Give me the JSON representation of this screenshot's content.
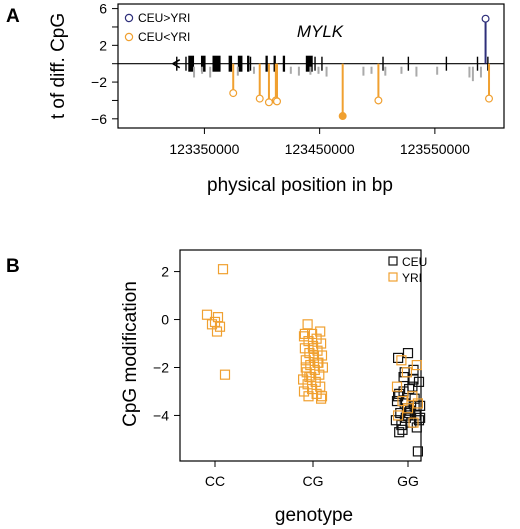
{
  "figure": {
    "panels": [
      {
        "letter": "A"
      },
      {
        "letter": "B"
      }
    ]
  },
  "chart_data": [
    {
      "type": "scatter",
      "panel": "A",
      "annotation": "MYLK",
      "xlabel": "physical position in bp",
      "ylabel": "t of diff. CpG",
      "xlim": [
        123275000,
        123610000
      ],
      "ylim": [
        -7,
        6.5
      ],
      "xticks": [
        123350000,
        123450000,
        123550000
      ],
      "xtick_labels": [
        "123350000",
        "123450000",
        "123550000"
      ],
      "yticks": [
        6,
        2,
        -2,
        -6
      ],
      "ytick_labels": [
        "6",
        "2",
        "−2",
        "−6"
      ],
      "yticks_unlabeled": [
        4,
        0,
        -4
      ],
      "legend": {
        "position": "top-left",
        "entries": [
          "CEU>YRI",
          "CEU<YRI"
        ]
      },
      "series": [
        {
          "name": "CEU>YRI",
          "color": "#2e2f7a",
          "x": [
            123594000
          ],
          "y": [
            4.9
          ]
        },
        {
          "name": "CEU<YRI",
          "color": "#f0a030",
          "x": [
            123375000,
            123398000,
            123406000,
            123412000,
            123413000,
            123470000,
            123501000,
            123597000
          ],
          "y": [
            -3.2,
            -3.8,
            -4.2,
            -4.0,
            -4.1,
            -5.7,
            -4.0,
            -3.8
          ],
          "filled": [
            false,
            false,
            false,
            false,
            false,
            true,
            false,
            false
          ]
        },
        {
          "name": "",
          "color": "#aaaaaa",
          "x": [
            123341000,
            123348000,
            123355000,
            123379000,
            123393000,
            123425000,
            123432000,
            123442000,
            123449000,
            123456000,
            123488000,
            123495000,
            123507000,
            123521000,
            123534000,
            123552000,
            123580000,
            123583000,
            123590000
          ],
          "y": [
            -1.5,
            -1.1,
            -1.5,
            -1.3,
            -1.1,
            -1.1,
            -1.3,
            -1.2,
            -1.1,
            -1.4,
            -1.3,
            -1.1,
            -1.3,
            -1.1,
            -1.4,
            -1.2,
            -1.5,
            -1.9,
            -1.5
          ]
        }
      ],
      "gene_model": {
        "direction": "reverse",
        "thin_exons_x": [
          123326000,
          123334000,
          123390000,
          123446000,
          123452000,
          123505000,
          123527000,
          123560000,
          123587000,
          123596000
        ],
        "wide_exons": [
          [
            123336000,
            123341000
          ],
          [
            123347000,
            123351000
          ],
          [
            123357000,
            123364000
          ],
          [
            123371000,
            123374000
          ],
          [
            123379000,
            123383000
          ],
          [
            123387000,
            123389000
          ],
          [
            123403000,
            123405000
          ],
          [
            123410000,
            123412000
          ],
          [
            123418000,
            123420000
          ],
          [
            123438000,
            123444000
          ]
        ]
      }
    },
    {
      "type": "scatter",
      "panel": "B",
      "xlabel": "genotype",
      "ylabel": "CpG modification",
      "categories": [
        "CC",
        "CG",
        "GG"
      ],
      "ylim": [
        -5.9,
        2.9
      ],
      "yticks": [
        2,
        0,
        -2,
        -4
      ],
      "ytick_labels": [
        "2",
        "0",
        "−2",
        "−4"
      ],
      "legend": {
        "position": "top-right",
        "entries": [
          "CEU",
          "YRI"
        ]
      },
      "series": [
        {
          "name": "CEU",
          "color": "#111111",
          "category": "GG",
          "values": [
            -1.4,
            -1.6,
            -2.1,
            -2.4,
            -2.6,
            -2.9,
            -3.1,
            -3.3,
            -3.5,
            -3.6,
            -3.8,
            -3.9,
            -4.0,
            -4.1,
            -4.2,
            -4.3,
            -4.4,
            -4.5,
            -3.7,
            -3.4,
            -2.8,
            -4.6,
            -5.5,
            -4.0,
            -3.2,
            -2.5,
            -3.0,
            -4.2,
            -3.9,
            -4.7,
            -3.6,
            -2.2,
            -4.1,
            -3.8
          ]
        },
        {
          "name": "YRI",
          "color": "#f0a030",
          "category": "CC",
          "values": [
            2.1,
            0.2,
            0.1,
            -0.1,
            -0.2,
            -0.3,
            -0.5,
            -2.3
          ]
        },
        {
          "name": "YRI",
          "color": "#f0a030",
          "category": "CG",
          "values": [
            -0.2,
            -0.5,
            -0.6,
            -0.7,
            -0.8,
            -0.9,
            -1.0,
            -1.1,
            -1.2,
            -1.3,
            -1.4,
            -1.5,
            -1.6,
            -1.7,
            -1.8,
            -1.9,
            -2.0,
            -2.1,
            -2.2,
            -2.3,
            -2.4,
            -2.5,
            -2.6,
            -2.7,
            -2.8,
            -2.9,
            -3.0,
            -3.1,
            -3.2,
            -3.3,
            -1.2,
            -0.6,
            -1.8,
            -2.4,
            -3.2,
            -1.5,
            -2.0
          ]
        },
        {
          "name": "YRI",
          "color": "#f0a030",
          "category": "GG",
          "values": [
            -1.7,
            -1.9,
            -2.2,
            -2.8,
            -3.2,
            -3.4,
            -3.5,
            -3.7,
            -4.0,
            -4.3
          ]
        }
      ]
    }
  ]
}
